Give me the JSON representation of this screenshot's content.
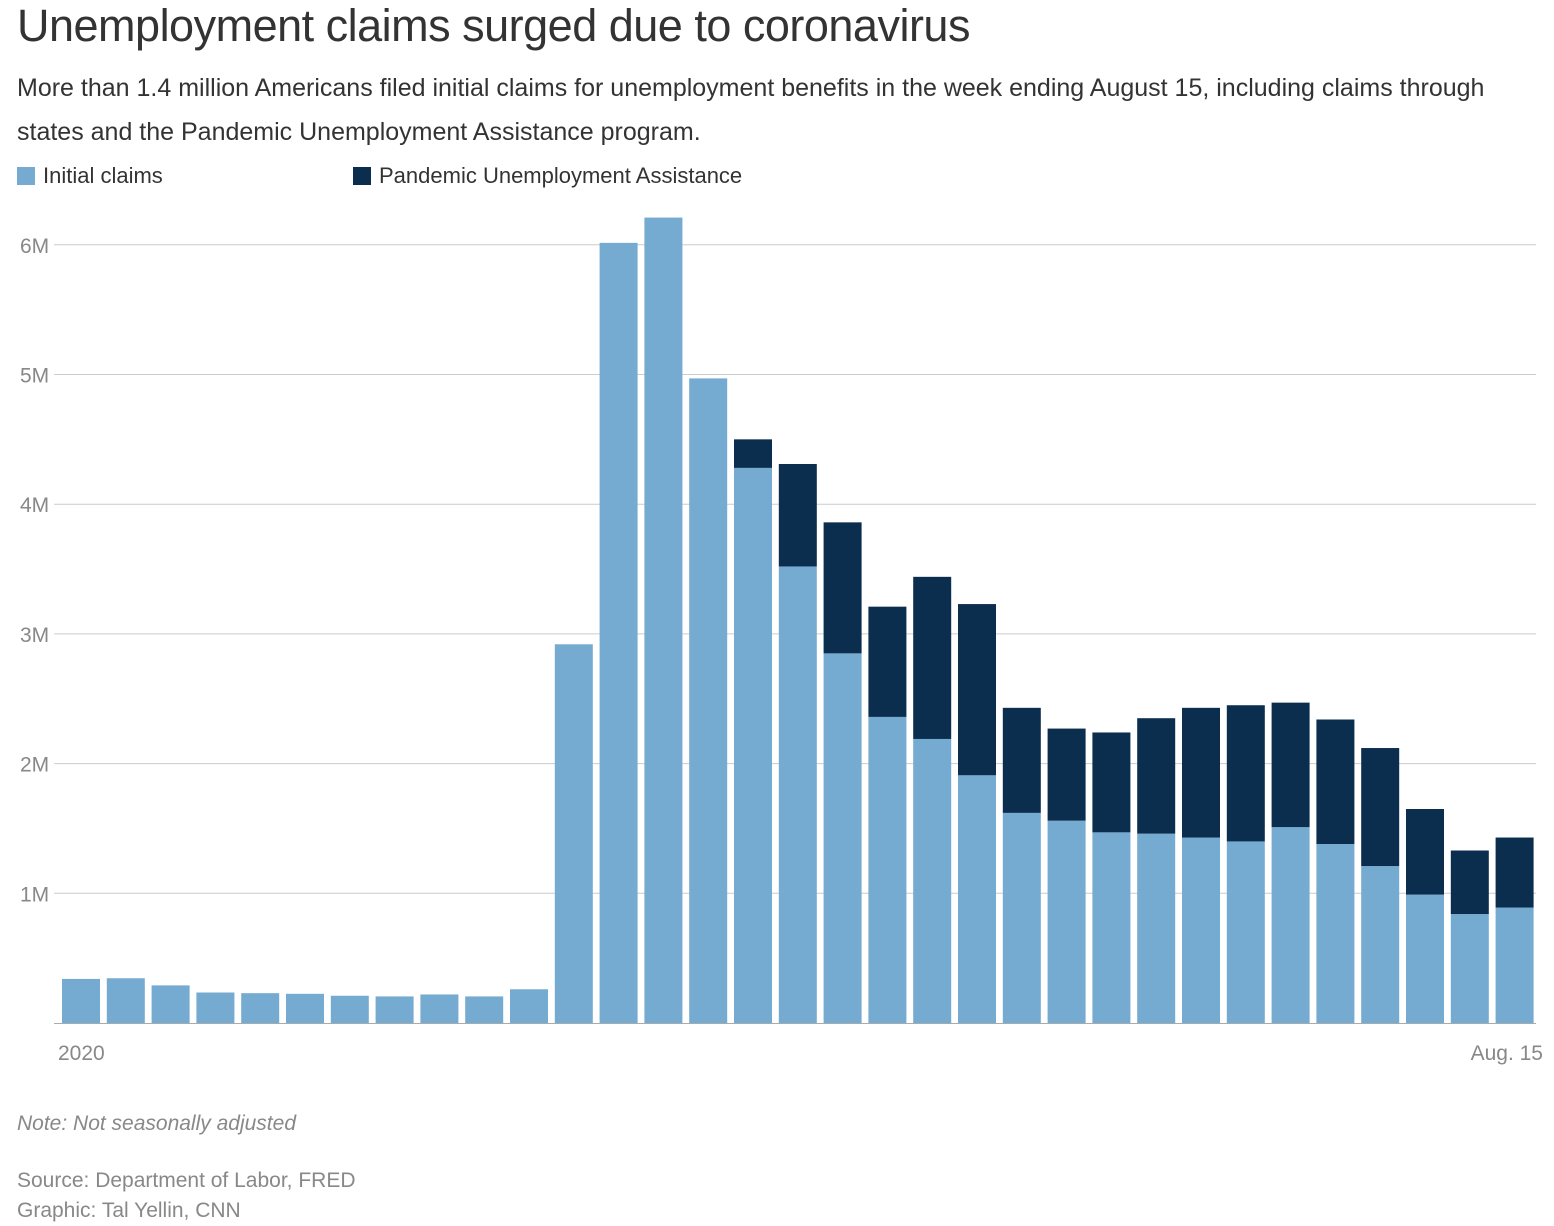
{
  "title": "Unemployment claims surged due to coronavirus",
  "subtitle": "More than 1.4 million Americans filed initial claims for unemployment benefits in the week ending August 15, including claims through states and the Pandemic Unemployment Assistance program.",
  "note": "Note: Not seasonally adjusted",
  "source": "Source: Department of Labor, FRED",
  "graphic": "Graphic: Tal Yellin, CNN",
  "colors": {
    "initial": "#75abd0",
    "pua": "#0b2d4e",
    "grid": "#cccccc",
    "axis_text": "#888888"
  },
  "chart_data": {
    "type": "bar",
    "stacked": true,
    "legend_position": "top-left",
    "grid": true,
    "ylim": [
      0,
      6000000
    ],
    "y_ticks": [
      {
        "value": 1000000,
        "label": "1M"
      },
      {
        "value": 2000000,
        "label": "2M"
      },
      {
        "value": 3000000,
        "label": "3M"
      },
      {
        "value": 4000000,
        "label": "4M"
      },
      {
        "value": 5000000,
        "label": "5M"
      },
      {
        "value": 6000000,
        "label": "6M"
      }
    ],
    "x_labels": {
      "start": "2020",
      "end": "Aug. 15"
    },
    "series": [
      {
        "name": "Initial claims",
        "values": [
          340000,
          345000,
          290000,
          235000,
          230000,
          225000,
          210000,
          205000,
          220000,
          205000,
          260000,
          2920000,
          6015000,
          6210000,
          4970000,
          4280000,
          3520000,
          2850000,
          2360000,
          2190000,
          1910000,
          1620000,
          1560000,
          1470000,
          1460000,
          1430000,
          1400000,
          1510000,
          1380000,
          1210000,
          990000,
          840000,
          890000
        ]
      },
      {
        "name": "Pandemic Unemployment Assistance",
        "values": [
          0,
          0,
          0,
          0,
          0,
          0,
          0,
          0,
          0,
          0,
          0,
          0,
          0,
          0,
          0,
          220000,
          790000,
          1010000,
          850000,
          1250000,
          1320000,
          810000,
          710000,
          770000,
          890000,
          1000000,
          1050000,
          960000,
          960000,
          910000,
          660000,
          490000,
          540000
        ]
      }
    ]
  }
}
